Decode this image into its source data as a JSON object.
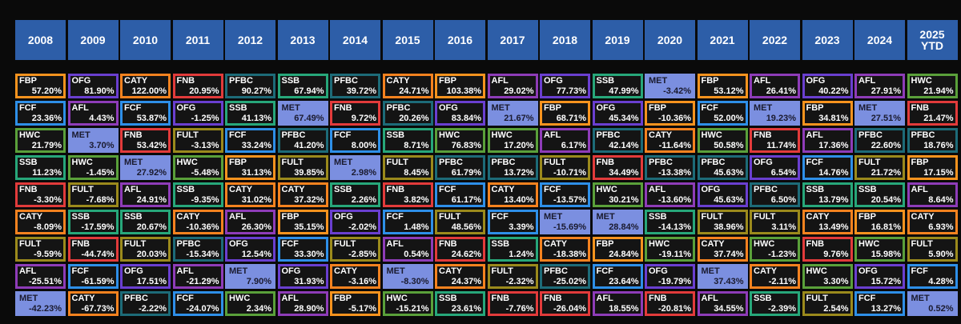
{
  "table": {
    "columns": [
      {
        "header": "2008",
        "cells": [
          {
            "ticker": "FBP",
            "return": "57.20%"
          },
          {
            "ticker": "FCF",
            "return": "23.36%"
          },
          {
            "ticker": "HWC",
            "return": "21.79%"
          },
          {
            "ticker": "SSB",
            "return": "11.23%"
          },
          {
            "ticker": "FNB",
            "return": "-3.30%"
          },
          {
            "ticker": "CATY",
            "return": "-8.09%"
          },
          {
            "ticker": "FULT",
            "return": "-9.59%"
          },
          {
            "ticker": "AFL",
            "return": "-25.51%"
          },
          {
            "ticker": "MET",
            "return": "-42.23%"
          }
        ]
      },
      {
        "header": "2009",
        "cells": [
          {
            "ticker": "OFG",
            "return": "81.90%"
          },
          {
            "ticker": "AFL",
            "return": "4.43%"
          },
          {
            "ticker": "MET",
            "return": "3.70%"
          },
          {
            "ticker": "HWC",
            "return": "-1.45%"
          },
          {
            "ticker": "FULT",
            "return": "-7.68%"
          },
          {
            "ticker": "SSB",
            "return": "-17.59%"
          },
          {
            "ticker": "FNB",
            "return": "-44.74%"
          },
          {
            "ticker": "FCF",
            "return": "-61.59%"
          },
          {
            "ticker": "CATY",
            "return": "-67.73%"
          }
        ]
      },
      {
        "header": "2010",
        "cells": [
          {
            "ticker": "CATY",
            "return": "122.00%"
          },
          {
            "ticker": "FCF",
            "return": "53.87%"
          },
          {
            "ticker": "FNB",
            "return": "53.42%"
          },
          {
            "ticker": "MET",
            "return": "27.92%"
          },
          {
            "ticker": "AFL",
            "return": "24.91%"
          },
          {
            "ticker": "SSB",
            "return": "20.67%"
          },
          {
            "ticker": "FULT",
            "return": "20.03%"
          },
          {
            "ticker": "OFG",
            "return": "17.51%"
          },
          {
            "ticker": "PFBC",
            "return": "-2.22%"
          }
        ]
      },
      {
        "header": "2011",
        "cells": [
          {
            "ticker": "FNB",
            "return": "20.95%"
          },
          {
            "ticker": "OFG",
            "return": "-1.25%"
          },
          {
            "ticker": "FULT",
            "return": "-3.13%"
          },
          {
            "ticker": "HWC",
            "return": "-5.48%"
          },
          {
            "ticker": "SSB",
            "return": "-9.35%"
          },
          {
            "ticker": "CATY",
            "return": "-10.36%"
          },
          {
            "ticker": "PFBC",
            "return": "-15.34%"
          },
          {
            "ticker": "AFL",
            "return": "-21.29%"
          },
          {
            "ticker": "FCF",
            "return": "-24.07%"
          }
        ]
      },
      {
        "header": "2012",
        "cells": [
          {
            "ticker": "PFBC",
            "return": "90.27%"
          },
          {
            "ticker": "SSB",
            "return": "41.13%"
          },
          {
            "ticker": "FCF",
            "return": "33.24%"
          },
          {
            "ticker": "FBP",
            "return": "31.13%"
          },
          {
            "ticker": "CATY",
            "return": "31.02%"
          },
          {
            "ticker": "AFL",
            "return": "26.30%"
          },
          {
            "ticker": "OFG",
            "return": "12.54%"
          },
          {
            "ticker": "MET",
            "return": "7.90%"
          },
          {
            "ticker": "HWC",
            "return": "2.34%"
          }
        ]
      },
      {
        "header": "2013",
        "cells": [
          {
            "ticker": "SSB",
            "return": "67.94%"
          },
          {
            "ticker": "MET",
            "return": "67.49%"
          },
          {
            "ticker": "PFBC",
            "return": "41.20%"
          },
          {
            "ticker": "FULT",
            "return": "39.85%"
          },
          {
            "ticker": "CATY",
            "return": "37.32%"
          },
          {
            "ticker": "FBP",
            "return": "35.15%"
          },
          {
            "ticker": "FCF",
            "return": "33.30%"
          },
          {
            "ticker": "OFG",
            "return": "31.93%"
          },
          {
            "ticker": "AFL",
            "return": "28.90%"
          }
        ]
      },
      {
        "header": "2014",
        "cells": [
          {
            "ticker": "PFBC",
            "return": "39.72%"
          },
          {
            "ticker": "FNB",
            "return": "9.72%"
          },
          {
            "ticker": "FCF",
            "return": "8.00%"
          },
          {
            "ticker": "MET",
            "return": "2.98%"
          },
          {
            "ticker": "SSB",
            "return": "2.26%"
          },
          {
            "ticker": "OFG",
            "return": "-2.02%"
          },
          {
            "ticker": "FULT",
            "return": "-2.85%"
          },
          {
            "ticker": "CATY",
            "return": "-3.16%"
          },
          {
            "ticker": "FBP",
            "return": "-5.17%"
          }
        ]
      },
      {
        "header": "2015",
        "cells": [
          {
            "ticker": "CATY",
            "return": "24.71%"
          },
          {
            "ticker": "PFBC",
            "return": "20.26%"
          },
          {
            "ticker": "SSB",
            "return": "8.71%"
          },
          {
            "ticker": "FULT",
            "return": "8.45%"
          },
          {
            "ticker": "FNB",
            "return": "3.82%"
          },
          {
            "ticker": "FCF",
            "return": "1.48%"
          },
          {
            "ticker": "AFL",
            "return": "0.54%"
          },
          {
            "ticker": "MET",
            "return": "-8.30%"
          },
          {
            "ticker": "HWC",
            "return": "-15.21%"
          }
        ]
      },
      {
        "header": "2016",
        "cells": [
          {
            "ticker": "FBP",
            "return": "103.38%"
          },
          {
            "ticker": "OFG",
            "return": "83.84%"
          },
          {
            "ticker": "HWC",
            "return": "76.83%"
          },
          {
            "ticker": "PFBC",
            "return": "61.79%"
          },
          {
            "ticker": "FCF",
            "return": "61.17%"
          },
          {
            "ticker": "FULT",
            "return": "48.56%"
          },
          {
            "ticker": "FNB",
            "return": "24.62%"
          },
          {
            "ticker": "CATY",
            "return": "24.37%"
          },
          {
            "ticker": "SSB",
            "return": "23.61%"
          }
        ]
      },
      {
        "header": "2017",
        "cells": [
          {
            "ticker": "AFL",
            "return": "29.02%"
          },
          {
            "ticker": "MET",
            "return": "21.67%"
          },
          {
            "ticker": "HWC",
            "return": "17.20%"
          },
          {
            "ticker": "PFBC",
            "return": "13.72%"
          },
          {
            "ticker": "CATY",
            "return": "13.40%"
          },
          {
            "ticker": "FCF",
            "return": "3.39%"
          },
          {
            "ticker": "SSB",
            "return": "1.24%"
          },
          {
            "ticker": "FULT",
            "return": "-2.32%"
          },
          {
            "ticker": "FNB",
            "return": "-7.76%"
          }
        ]
      },
      {
        "header": "2018",
        "cells": [
          {
            "ticker": "OFG",
            "return": "77.73%"
          },
          {
            "ticker": "FBP",
            "return": "68.71%"
          },
          {
            "ticker": "AFL",
            "return": "6.17%"
          },
          {
            "ticker": "FULT",
            "return": "-10.71%"
          },
          {
            "ticker": "FCF",
            "return": "-13.57%"
          },
          {
            "ticker": "MET",
            "return": "-15.69%"
          },
          {
            "ticker": "CATY",
            "return": "-18.38%"
          },
          {
            "ticker": "PFBC",
            "return": "-25.02%"
          },
          {
            "ticker": "FNB",
            "return": "-26.04%"
          }
        ]
      },
      {
        "header": "2019",
        "cells": [
          {
            "ticker": "SSB",
            "return": "47.99%"
          },
          {
            "ticker": "OFG",
            "return": "45.34%"
          },
          {
            "ticker": "PFBC",
            "return": "42.14%"
          },
          {
            "ticker": "FNB",
            "return": "34.49%"
          },
          {
            "ticker": "HWC",
            "return": "30.21%"
          },
          {
            "ticker": "MET",
            "return": "28.84%"
          },
          {
            "ticker": "FBP",
            "return": "24.84%"
          },
          {
            "ticker": "FCF",
            "return": "23.64%"
          },
          {
            "ticker": "AFL",
            "return": "18.55%"
          }
        ]
      },
      {
        "header": "2020",
        "cells": [
          {
            "ticker": "MET",
            "return": "-3.42%"
          },
          {
            "ticker": "FBP",
            "return": "-10.36%"
          },
          {
            "ticker": "CATY",
            "return": "-11.64%"
          },
          {
            "ticker": "PFBC",
            "return": "-13.38%"
          },
          {
            "ticker": "AFL",
            "return": "-13.60%"
          },
          {
            "ticker": "SSB",
            "return": "-14.13%"
          },
          {
            "ticker": "HWC",
            "return": "-19.11%"
          },
          {
            "ticker": "OFG",
            "return": "-19.79%"
          },
          {
            "ticker": "FNB",
            "return": "-20.81%"
          }
        ]
      },
      {
        "header": "2021",
        "cells": [
          {
            "ticker": "FBP",
            "return": "53.12%"
          },
          {
            "ticker": "FCF",
            "return": "52.00%"
          },
          {
            "ticker": "HWC",
            "return": "50.58%"
          },
          {
            "ticker": "PFBC",
            "return": "45.63%"
          },
          {
            "ticker": "OFG",
            "return": "45.63%"
          },
          {
            "ticker": "FULT",
            "return": "38.96%"
          },
          {
            "ticker": "CATY",
            "return": "37.74%"
          },
          {
            "ticker": "MET",
            "return": "37.43%"
          },
          {
            "ticker": "AFL",
            "return": "34.55%"
          }
        ]
      },
      {
        "header": "2022",
        "cells": [
          {
            "ticker": "AFL",
            "return": "26.41%"
          },
          {
            "ticker": "MET",
            "return": "19.23%"
          },
          {
            "ticker": "FNB",
            "return": "11.74%"
          },
          {
            "ticker": "OFG",
            "return": "6.54%"
          },
          {
            "ticker": "PFBC",
            "return": "6.50%"
          },
          {
            "ticker": "FULT",
            "return": "3.11%"
          },
          {
            "ticker": "HWC",
            "return": "-1.23%"
          },
          {
            "ticker": "CATY",
            "return": "-2.11%"
          },
          {
            "ticker": "SSB",
            "return": "-2.39%"
          }
        ]
      },
      {
        "header": "2023",
        "cells": [
          {
            "ticker": "OFG",
            "return": "40.22%"
          },
          {
            "ticker": "FBP",
            "return": "34.81%"
          },
          {
            "ticker": "AFL",
            "return": "17.36%"
          },
          {
            "ticker": "FCF",
            "return": "14.76%"
          },
          {
            "ticker": "SSB",
            "return": "13.79%"
          },
          {
            "ticker": "CATY",
            "return": "13.49%"
          },
          {
            "ticker": "FNB",
            "return": "9.76%"
          },
          {
            "ticker": "HWC",
            "return": "3.30%"
          },
          {
            "ticker": "FULT",
            "return": "2.54%"
          }
        ]
      },
      {
        "header": "2024",
        "cells": [
          {
            "ticker": "AFL",
            "return": "27.91%"
          },
          {
            "ticker": "MET",
            "return": "27.51%"
          },
          {
            "ticker": "PFBC",
            "return": "22.60%"
          },
          {
            "ticker": "FULT",
            "return": "21.72%"
          },
          {
            "ticker": "SSB",
            "return": "20.54%"
          },
          {
            "ticker": "FBP",
            "return": "16.81%"
          },
          {
            "ticker": "HWC",
            "return": "15.98%"
          },
          {
            "ticker": "OFG",
            "return": "15.72%"
          },
          {
            "ticker": "FCF",
            "return": "13.27%"
          }
        ]
      },
      {
        "header": "2025 YTD",
        "cells": [
          {
            "ticker": "HWC",
            "return": "21.94%"
          },
          {
            "ticker": "FNB",
            "return": "21.47%"
          },
          {
            "ticker": "PFBC",
            "return": "18.76%"
          },
          {
            "ticker": "FBP",
            "return": "17.15%"
          },
          {
            "ticker": "AFL",
            "return": "8.64%"
          },
          {
            "ticker": "CATY",
            "return": "6.93%"
          },
          {
            "ticker": "FULT",
            "return": "5.90%"
          },
          {
            "ticker": "FCF",
            "return": "4.28%"
          },
          {
            "ticker": "MET",
            "return": "0.52%"
          }
        ]
      }
    ]
  },
  "ticker_colors": {
    "FBP": "#f7931e",
    "OFG": "#6a3fd0",
    "CATY": "#f5821f",
    "FNB": "#e23b3b",
    "PFBC": "#1d6b78",
    "SSB": "#27a77a",
    "AFL": "#8e3cb8",
    "MET": "#7b8fe0",
    "FCF": "#2e8fe8",
    "HWC": "#5aa03a",
    "FULT": "#9b8a1c"
  },
  "filled_ticker": "MET"
}
